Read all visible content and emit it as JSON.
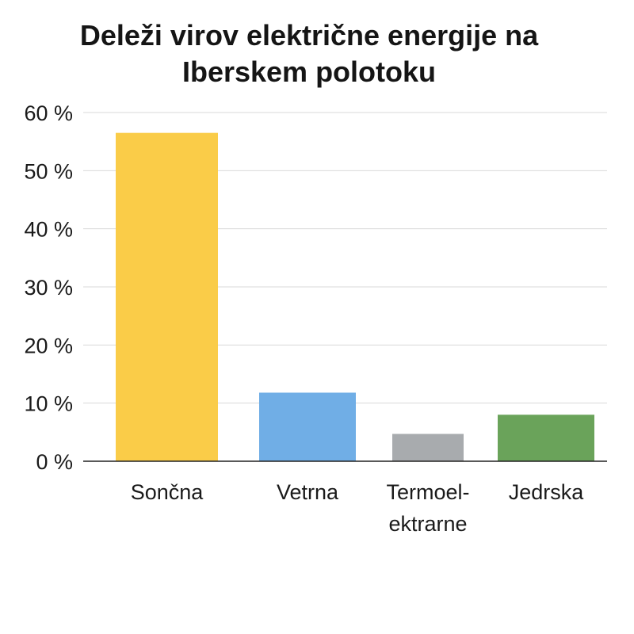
{
  "chart_data": {
    "type": "bar",
    "title_lines": [
      "Deleži virov električne energije na",
      "Iberskem polotoku"
    ],
    "categories": [
      "Sončna",
      "Vetrna",
      "Termoel-ektrarne",
      "Jedrska"
    ],
    "category_lines": [
      [
        "Sončna"
      ],
      [
        "Vetrna"
      ],
      [
        "Termoel-",
        "ektrarne"
      ],
      [
        "Jedrska"
      ]
    ],
    "values": [
      56.5,
      11.8,
      4.7,
      8.0
    ],
    "colors": [
      "#FACC48",
      "#70AEE6",
      "#A8ABAE",
      "#6AA35A"
    ],
    "ylim": [
      0,
      60
    ],
    "yticks": [
      0,
      10,
      20,
      30,
      40,
      50,
      60
    ],
    "ytick_labels": [
      "0 %",
      "10 %",
      "20 %",
      "30 %",
      "40 %",
      "50 %",
      "60 %"
    ],
    "grid": true,
    "xlabel": "",
    "ylabel": ""
  }
}
